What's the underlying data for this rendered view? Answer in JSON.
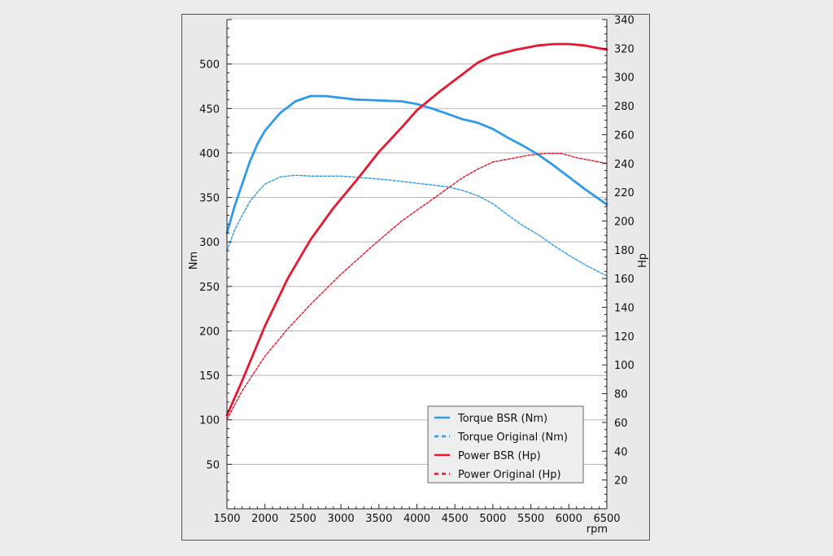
{
  "chart_data": {
    "type": "line",
    "xlabel": "rpm",
    "ylabel_left": "Nm",
    "ylabel_right": "Hp",
    "xlim": [
      1500,
      6500
    ],
    "ylim_left": [
      0,
      550
    ],
    "ylim_right": [
      0,
      340
    ],
    "x_ticks": [
      1500,
      2000,
      2500,
      3000,
      3500,
      4000,
      4500,
      5000,
      5500,
      6000,
      6500
    ],
    "y_left_ticks": [
      50,
      100,
      150,
      200,
      250,
      300,
      350,
      400,
      450,
      500
    ],
    "y_right_ticks": [
      20,
      40,
      60,
      80,
      100,
      120,
      140,
      160,
      180,
      200,
      220,
      240,
      260,
      280,
      300,
      320,
      340
    ],
    "grid": "horizontal",
    "legend_position": "bottom-right",
    "series": [
      {
        "name": "Torque BSR (Nm)",
        "axis": "left",
        "color": "#2f9be8",
        "style": "solid",
        "points": [
          [
            1500,
            310
          ],
          [
            1600,
            340
          ],
          [
            1700,
            365
          ],
          [
            1800,
            390
          ],
          [
            1900,
            410
          ],
          [
            2000,
            425
          ],
          [
            2200,
            445
          ],
          [
            2400,
            458
          ],
          [
            2600,
            464
          ],
          [
            2800,
            464
          ],
          [
            3000,
            462
          ],
          [
            3200,
            460
          ],
          [
            3500,
            459
          ],
          [
            3800,
            458
          ],
          [
            4000,
            455
          ],
          [
            4200,
            450
          ],
          [
            4400,
            444
          ],
          [
            4600,
            438
          ],
          [
            4800,
            434
          ],
          [
            5000,
            427
          ],
          [
            5200,
            417
          ],
          [
            5400,
            408
          ],
          [
            5600,
            398
          ],
          [
            5800,
            386
          ],
          [
            6000,
            373
          ],
          [
            6200,
            360
          ],
          [
            6400,
            348
          ],
          [
            6500,
            342
          ]
        ]
      },
      {
        "name": "Torque Original (Nm)",
        "axis": "left",
        "color": "#2f9be8",
        "style": "dashed",
        "points": [
          [
            1500,
            290
          ],
          [
            1600,
            313
          ],
          [
            1700,
            330
          ],
          [
            1800,
            345
          ],
          [
            1900,
            356
          ],
          [
            2000,
            365
          ],
          [
            2200,
            373
          ],
          [
            2400,
            375
          ],
          [
            2600,
            374
          ],
          [
            3000,
            374
          ],
          [
            3300,
            372
          ],
          [
            3600,
            370
          ],
          [
            4000,
            366
          ],
          [
            4400,
            362
          ],
          [
            4600,
            358
          ],
          [
            4800,
            352
          ],
          [
            5000,
            343
          ],
          [
            5200,
            330
          ],
          [
            5400,
            318
          ],
          [
            5600,
            308
          ],
          [
            5800,
            296
          ],
          [
            6000,
            285
          ],
          [
            6200,
            275
          ],
          [
            6400,
            266
          ],
          [
            6500,
            262
          ]
        ]
      },
      {
        "name": "Power BSR (Hp)",
        "axis": "right",
        "color": "#e8172e",
        "style": "solid",
        "points": [
          [
            1500,
            65
          ],
          [
            1700,
            89
          ],
          [
            2000,
            127
          ],
          [
            2300,
            160
          ],
          [
            2600,
            187
          ],
          [
            2900,
            209
          ],
          [
            3200,
            228
          ],
          [
            3500,
            248
          ],
          [
            3800,
            265
          ],
          [
            4000,
            277
          ],
          [
            4300,
            290
          ],
          [
            4600,
            302
          ],
          [
            4800,
            310
          ],
          [
            5000,
            315
          ],
          [
            5300,
            319
          ],
          [
            5600,
            322
          ],
          [
            5800,
            323
          ],
          [
            6000,
            323
          ],
          [
            6200,
            322
          ],
          [
            6500,
            319
          ]
        ]
      },
      {
        "name": "Power Original (Hp)",
        "axis": "right",
        "color": "#e8172e",
        "style": "dashed",
        "points": [
          [
            1500,
            62
          ],
          [
            1700,
            82
          ],
          [
            2000,
            106
          ],
          [
            2300,
            125
          ],
          [
            2600,
            142
          ],
          [
            3000,
            163
          ],
          [
            3400,
            182
          ],
          [
            3800,
            200
          ],
          [
            4200,
            215
          ],
          [
            4600,
            230
          ],
          [
            4800,
            236
          ],
          [
            5000,
            241
          ],
          [
            5200,
            243
          ],
          [
            5500,
            246
          ],
          [
            5700,
            247
          ],
          [
            5900,
            247
          ],
          [
            6100,
            244
          ],
          [
            6300,
            242
          ],
          [
            6500,
            240
          ]
        ]
      }
    ]
  }
}
